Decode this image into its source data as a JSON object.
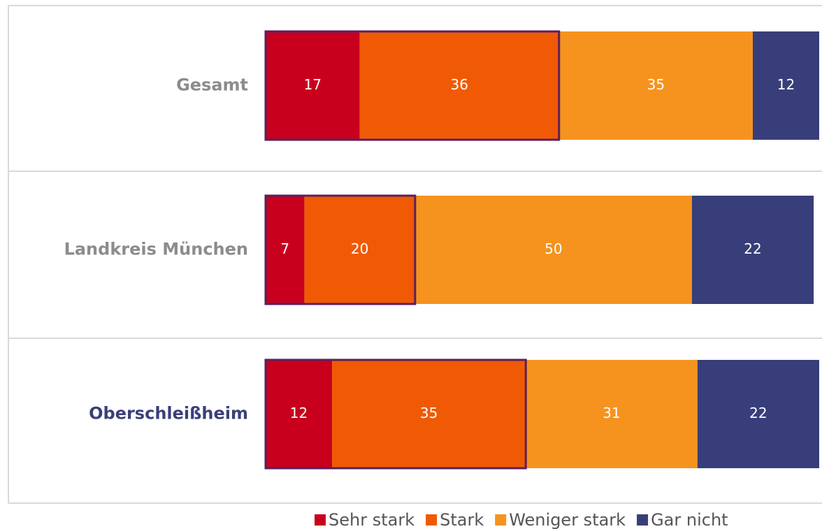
{
  "chart_data": {
    "type": "stacked_barh",
    "categories": [
      "Gesamt",
      "Landkreis München",
      "Oberschleißheim"
    ],
    "label_colors": [
      "#8c8c8c",
      "#8c8c8c",
      "#3a3f7a"
    ],
    "series": [
      {
        "name": "Sehr stark",
        "color": "#c8001e",
        "values": [
          17,
          7,
          12
        ]
      },
      {
        "name": "Stark",
        "color": "#f05a05",
        "values": [
          36,
          20,
          35
        ]
      },
      {
        "name": "Weniger stark",
        "color": "#f5931e",
        "values": [
          35,
          50,
          31
        ]
      },
      {
        "name": "Gar nicht",
        "color": "#383e7a",
        "values": [
          12,
          22,
          22
        ]
      }
    ],
    "xlim": [
      0,
      100
    ],
    "outline_color": "#5b1f5e"
  }
}
